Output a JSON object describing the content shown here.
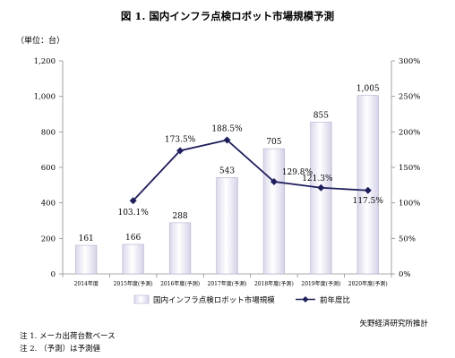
{
  "chart_data": {
    "type": "bar",
    "title": "図 1. 国内インフラ点検ロボット市場規模予測",
    "unit_label": "（単位：台）",
    "categories": [
      "2014年度",
      "2015年度(予測)",
      "2016年度(予測)",
      "2017年度(予測)",
      "2018年度(予測)",
      "2019年度(予測)",
      "2020年度(予測)"
    ],
    "series": [
      {
        "name": "国内インフラ点検ロボット市場規模",
        "type": "bar",
        "axis": "left",
        "values": [
          161,
          166,
          288,
          543,
          705,
          855,
          1005
        ],
        "labels": [
          "161",
          "166",
          "288",
          "543",
          "705",
          "855",
          "1,005"
        ]
      },
      {
        "name": "前年度比",
        "type": "line",
        "axis": "right",
        "values": [
          null,
          103.1,
          173.5,
          188.5,
          129.8,
          121.3,
          117.5
        ],
        "labels": [
          "",
          "103.1%",
          "173.5%",
          "188.5%",
          "129.8%",
          "121.3%",
          "117.5%"
        ]
      }
    ],
    "left_axis": {
      "min": 0,
      "max": 1200,
      "ticks": [
        0,
        200,
        400,
        600,
        800,
        1000,
        1200
      ],
      "tick_labels": [
        "0",
        "200",
        "400",
        "600",
        "800",
        "1,000",
        "1,200"
      ]
    },
    "right_axis": {
      "min": 0,
      "max": 300,
      "ticks": [
        0,
        50,
        100,
        150,
        200,
        250,
        300
      ],
      "tick_labels": [
        "0%",
        "50%",
        "100%",
        "150%",
        "200%",
        "250%",
        "300%"
      ]
    },
    "grid": false,
    "legend_position": "bottom",
    "colors": {
      "bar_fill": "#f2f0f8",
      "bar_stroke": "#b4aed0",
      "line": "#1f1f5c",
      "axis": "#8c8c8c"
    }
  },
  "notes": [
    "注 1. メーカ出荷台数ベース",
    "注 2. （予測）は予測値"
  ],
  "source": "矢野経済研究所推計"
}
